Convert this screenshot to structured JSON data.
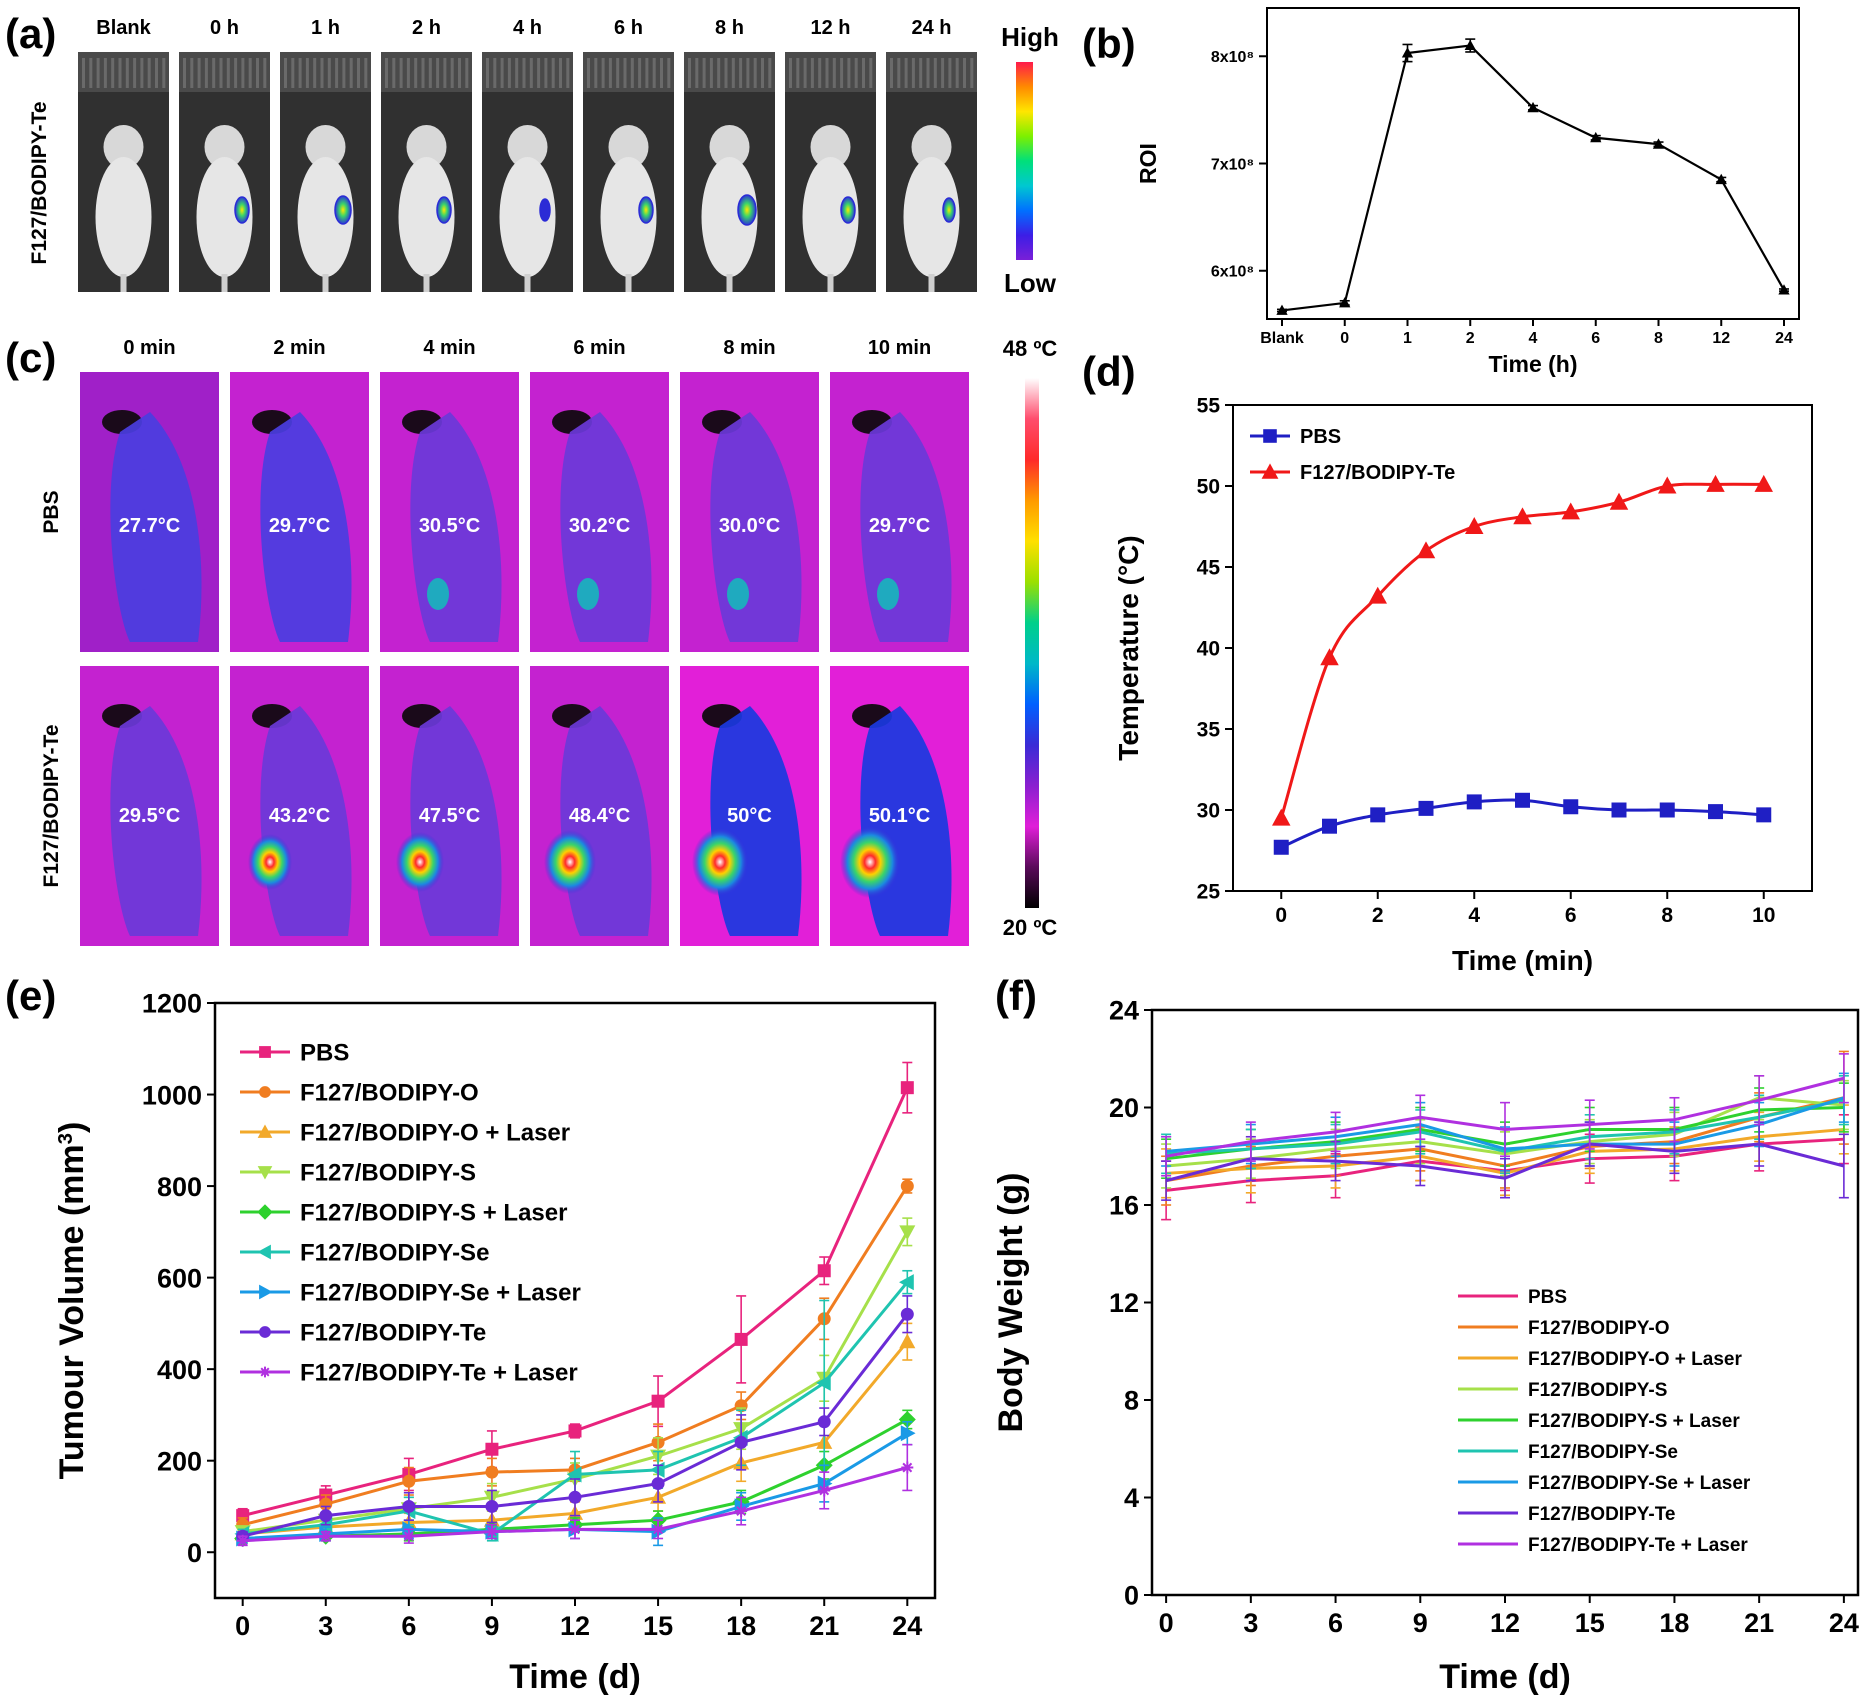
{
  "panel_a": {
    "letter": "(a)",
    "row_label": "F127/BODIPY-Te",
    "columns": [
      "Blank",
      "0 h",
      "1 h",
      "2 h",
      "4 h",
      "6 h",
      "8 h",
      "12 h",
      "24 h"
    ],
    "colorbar_high": "High",
    "colorbar_low": "Low",
    "colorbar_colors": [
      "#ff1a4b",
      "#ff8a00",
      "#ffe600",
      "#7df000",
      "#00e07a",
      "#00c8d0",
      "#0070ff",
      "#3c1ee6",
      "#7a1fd8"
    ]
  },
  "panel_c": {
    "letter": "(c)",
    "columns": [
      "0 min",
      "2 min",
      "4 min",
      "6 min",
      "8 min",
      "10 min"
    ],
    "rows": [
      {
        "label": "PBS",
        "temps": [
          "27.7°C",
          "29.7°C",
          "30.5°C",
          "30.2°C",
          "30.0°C",
          "29.7°C"
        ]
      },
      {
        "label": "F127/BODIPY-Te",
        "temps": [
          "29.5°C",
          "43.2°C",
          "47.5°C",
          "48.4°C",
          "50°C",
          "50.1°C"
        ]
      }
    ],
    "colorbar_top": "48 ºC",
    "colorbar_bottom": "20 ºC",
    "colorbar_colors": [
      "#ffffff",
      "#ff4d6d",
      "#ff2a2a",
      "#ff9a00",
      "#ffe000",
      "#9be000",
      "#00d08a",
      "#00b8c8",
      "#0060ff",
      "#3a2bd6",
      "#8a1fd0",
      "#e01fd8",
      "#5a0a5a",
      "#000000"
    ]
  },
  "chart_data": [
    {
      "panel": "(b)",
      "type": "line",
      "title": "",
      "xlabel": "Time (h)",
      "ylabel": "ROI",
      "categories": [
        "Blank",
        "0",
        "1",
        "2",
        "4",
        "6",
        "8",
        "12",
        "24"
      ],
      "yticks": [
        {
          "value": 6,
          "label": "6x10⁸"
        },
        {
          "value": 7,
          "label": "7x10⁸"
        },
        {
          "value": 8,
          "label": "8x10⁸"
        }
      ],
      "ylim": [
        5.55,
        8.45
      ],
      "series": [
        {
          "name": "",
          "color": "#000000",
          "values": [
            5.63,
            5.7,
            8.03,
            8.1,
            7.52,
            7.24,
            7.18,
            6.85,
            5.82
          ],
          "errors": [
            0.01,
            0.02,
            0.08,
            0.06,
            0.02,
            0.02,
            0.02,
            0.02,
            0.01
          ]
        }
      ]
    },
    {
      "panel": "(d)",
      "type": "line",
      "title": "",
      "xlabel": "Time (min)",
      "ylabel": "Temperature (°C)",
      "x": [
        0,
        1,
        2,
        3,
        4,
        5,
        6,
        7,
        8,
        9,
        10
      ],
      "xticks": [
        0,
        2,
        4,
        6,
        8,
        10
      ],
      "yticks": [
        25,
        30,
        35,
        40,
        45,
        50,
        55
      ],
      "xlim": [
        -1,
        11
      ],
      "ylim": [
        25,
        55
      ],
      "legend_position": "top-left",
      "series": [
        {
          "name": "PBS",
          "color": "#1f1fc4",
          "marker": "square",
          "values": [
            27.7,
            29.0,
            29.7,
            30.1,
            30.5,
            30.6,
            30.2,
            30.0,
            30.0,
            29.9,
            29.7
          ]
        },
        {
          "name": "F127/BODIPY-Te",
          "color": "#f01818",
          "marker": "triangle",
          "values": [
            29.5,
            39.4,
            43.2,
            46.0,
            47.5,
            48.1,
            48.4,
            49.0,
            50.0,
            50.1,
            50.1
          ]
        }
      ]
    },
    {
      "panel": "(e)",
      "type": "line",
      "title": "",
      "xlabel": "Time (d)",
      "ylabel": "Tumour Volume (mm",
      "ylabel_sup": "3",
      "ylabel_end": ")",
      "x": [
        0,
        3,
        6,
        9,
        12,
        15,
        18,
        21,
        24
      ],
      "xticks": [
        0,
        3,
        6,
        9,
        12,
        15,
        18,
        21,
        24
      ],
      "yticks": [
        0,
        200,
        400,
        600,
        800,
        1000,
        1200
      ],
      "xlim": [
        -1,
        25
      ],
      "ylim": [
        -100,
        1200
      ],
      "legend_position": "top-left",
      "series": [
        {
          "name": "PBS",
          "color": "#e8237d",
          "marker": "square",
          "values": [
            80,
            125,
            170,
            225,
            265,
            330,
            465,
            615,
            1015
          ],
          "errors": [
            15,
            20,
            35,
            40,
            15,
            55,
            95,
            30,
            55
          ]
        },
        {
          "name": "F127/BODIPY-O",
          "color": "#f07d20",
          "marker": "circle",
          "values": [
            60,
            105,
            155,
            175,
            180,
            240,
            320,
            510,
            800
          ],
          "errors": [
            15,
            20,
            30,
            30,
            25,
            40,
            30,
            45,
            15
          ]
        },
        {
          "name": "F127/BODIPY-O + Laser",
          "color": "#f2a92a",
          "marker": "triangle",
          "values": [
            40,
            55,
            65,
            70,
            85,
            120,
            195,
            240,
            460
          ],
          "errors": [
            10,
            15,
            20,
            20,
            25,
            30,
            40,
            50,
            40
          ]
        },
        {
          "name": "F127/BODIPY-S",
          "color": "#a6e04a",
          "marker": "triangle-down",
          "values": [
            45,
            70,
            95,
            120,
            160,
            210,
            270,
            380,
            700
          ],
          "errors": [
            10,
            15,
            25,
            30,
            35,
            40,
            45,
            50,
            30
          ]
        },
        {
          "name": "F127/BODIPY-S + Laser",
          "color": "#2ed12e",
          "marker": "diamond",
          "values": [
            30,
            35,
            40,
            50,
            60,
            70,
            110,
            190,
            290
          ],
          "errors": [
            10,
            10,
            15,
            15,
            15,
            20,
            25,
            30,
            20
          ]
        },
        {
          "name": "F127/BODIPY-Se",
          "color": "#1fc4b0",
          "marker": "triangle-left",
          "values": [
            40,
            60,
            90,
            40,
            170,
            180,
            250,
            370,
            590
          ],
          "errors": [
            10,
            15,
            30,
            15,
            50,
            40,
            60,
            180,
            25
          ]
        },
        {
          "name": "F127/BODIPY-Se + Laser",
          "color": "#1a9ae6",
          "marker": "triangle-right",
          "values": [
            30,
            40,
            50,
            45,
            50,
            45,
            100,
            150,
            260
          ],
          "errors": [
            10,
            15,
            20,
            15,
            20,
            30,
            30,
            40,
            25
          ]
        },
        {
          "name": "F127/BODIPY-Te",
          "color": "#6a2bd6",
          "marker": "circle",
          "values": [
            35,
            80,
            100,
            100,
            120,
            150,
            240,
            285,
            520
          ],
          "errors": [
            10,
            20,
            30,
            35,
            40,
            40,
            60,
            30,
            40
          ]
        },
        {
          "name": "F127/BODIPY-Te + Laser",
          "color": "#b030e0",
          "marker": "star",
          "values": [
            25,
            35,
            35,
            45,
            50,
            50,
            90,
            135,
            185
          ],
          "errors": [
            10,
            10,
            15,
            15,
            20,
            20,
            30,
            40,
            50
          ]
        }
      ]
    },
    {
      "panel": "(f)",
      "type": "line",
      "title": "",
      "xlabel": "Time (d)",
      "ylabel": "Body Weight (g)",
      "x": [
        0,
        3,
        6,
        9,
        12,
        15,
        18,
        21,
        24
      ],
      "xticks": [
        0,
        3,
        6,
        9,
        12,
        15,
        18,
        21,
        24
      ],
      "yticks": [
        0,
        4,
        8,
        12,
        16,
        20,
        24
      ],
      "xlim": [
        -0.5,
        24.5
      ],
      "ylim": [
        0,
        24
      ],
      "legend_position": "bottom-right",
      "series": [
        {
          "name": "PBS",
          "color": "#e8237d",
          "values": [
            16.6,
            17.0,
            17.2,
            17.8,
            17.4,
            17.9,
            18.0,
            18.5,
            18.7
          ],
          "errors": [
            1.2,
            0.9,
            0.9,
            0.8,
            0.8,
            1.0,
            1.0,
            1.1,
            1.0
          ]
        },
        {
          "name": "F127/BODIPY-O",
          "color": "#f07d20",
          "values": [
            17.0,
            17.6,
            18.0,
            18.3,
            17.6,
            18.4,
            18.6,
            19.6,
            20.4
          ],
          "errors": [
            1.0,
            0.8,
            0.8,
            0.9,
            0.9,
            0.9,
            0.9,
            1.0,
            1.9
          ]
        },
        {
          "name": "F127/BODIPY-O + Laser",
          "color": "#f2a92a",
          "values": [
            17.3,
            17.5,
            17.6,
            18.0,
            17.3,
            18.2,
            18.3,
            18.8,
            19.1
          ],
          "errors": [
            1.0,
            1.0,
            0.9,
            1.0,
            0.9,
            0.9,
            0.9,
            1.0,
            1.0
          ]
        },
        {
          "name": "F127/BODIPY-S",
          "color": "#a6e04a",
          "values": [
            17.6,
            17.9,
            18.3,
            18.6,
            18.1,
            18.6,
            18.9,
            20.4,
            20.1
          ],
          "errors": [
            0.9,
            0.8,
            0.8,
            0.9,
            0.9,
            0.9,
            0.9,
            0.9,
            1.0
          ]
        },
        {
          "name": "F127/BODIPY-S + Laser",
          "color": "#2ed12e",
          "values": [
            17.9,
            18.3,
            18.6,
            19.1,
            18.5,
            19.1,
            19.1,
            19.9,
            20.0
          ],
          "errors": [
            0.8,
            0.8,
            0.8,
            0.9,
            0.9,
            0.9,
            0.9,
            0.9,
            1.0
          ]
        },
        {
          "name": "F127/BODIPY-Se",
          "color": "#1fc4b0",
          "values": [
            18.1,
            18.3,
            18.5,
            19.0,
            18.2,
            18.8,
            19.0,
            19.6,
            20.3
          ],
          "errors": [
            0.8,
            0.8,
            0.8,
            0.9,
            0.9,
            0.9,
            0.9,
            0.9,
            1.0
          ]
        },
        {
          "name": "F127/BODIPY-Se + Laser",
          "color": "#1a9ae6",
          "values": [
            18.2,
            18.5,
            18.8,
            19.3,
            18.3,
            18.5,
            18.5,
            19.3,
            20.4
          ],
          "errors": [
            0.6,
            0.8,
            0.8,
            0.9,
            0.9,
            0.9,
            0.9,
            0.9,
            1.0
          ]
        },
        {
          "name": "F127/BODIPY-Te",
          "color": "#6a2bd6",
          "values": [
            17.0,
            17.9,
            17.8,
            17.6,
            17.1,
            18.5,
            18.2,
            18.5,
            17.6
          ],
          "errors": [
            0.8,
            0.9,
            0.8,
            0.8,
            0.8,
            0.9,
            0.9,
            0.9,
            1.3
          ]
        },
        {
          "name": "F127/BODIPY-Te + Laser",
          "color": "#b030e0",
          "values": [
            18.0,
            18.6,
            19.0,
            19.6,
            19.1,
            19.3,
            19.5,
            20.3,
            21.2
          ],
          "errors": [
            0.8,
            0.8,
            0.8,
            0.9,
            1.1,
            1.0,
            0.9,
            1.0,
            1.0
          ]
        }
      ]
    }
  ]
}
